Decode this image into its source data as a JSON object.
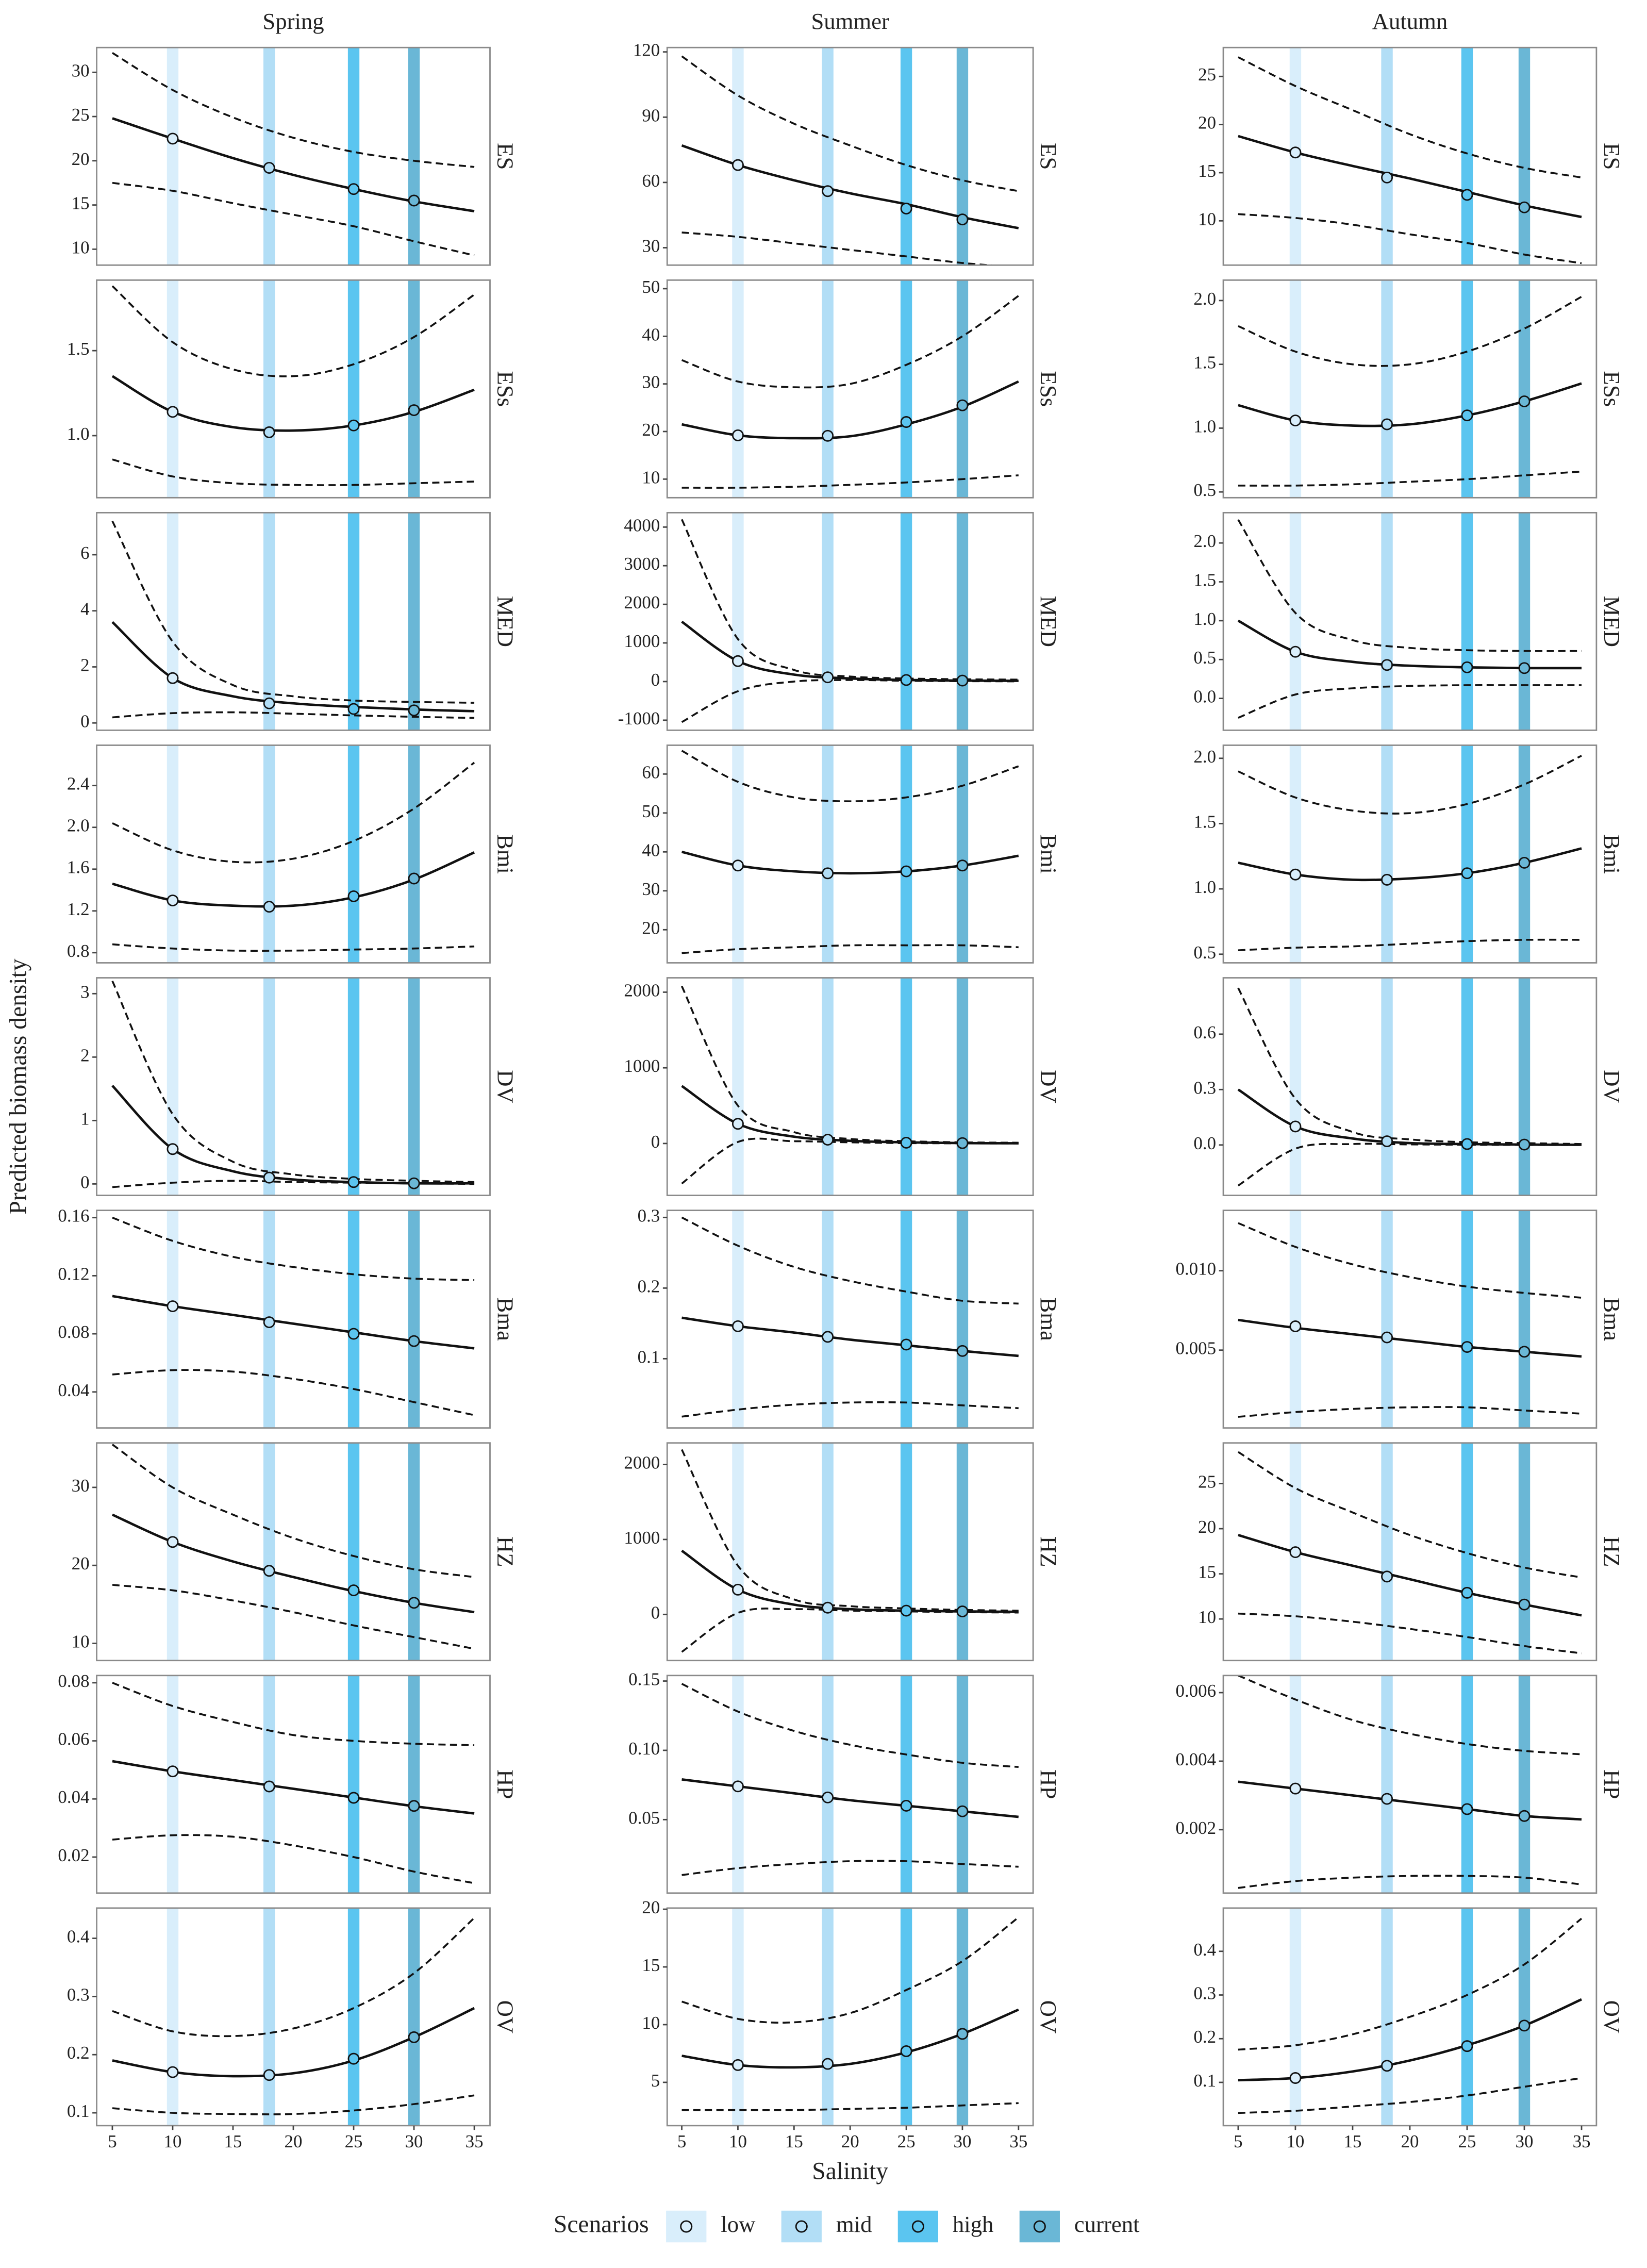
{
  "columns": [
    "Spring",
    "Summer",
    "Autumn"
  ],
  "rows": [
    "ES",
    "ESs",
    "MED",
    "Bmi",
    "DV",
    "Bma",
    "HZ",
    "HP",
    "OV"
  ],
  "xlabel": "Salinity",
  "ylabel": "Predicted biomass density",
  "x": [
    5,
    10,
    15,
    20,
    25,
    30,
    35
  ],
  "xlim": [
    3.7,
    36.3
  ],
  "xticks": [
    5,
    10,
    15,
    20,
    25,
    30,
    35
  ],
  "legend": {
    "title": "Scenarios",
    "position": "bottom"
  },
  "scenarios": [
    {
      "name": "low",
      "salinity": 10,
      "color": "#d9eefb"
    },
    {
      "name": "mid",
      "salinity": 18,
      "color": "#b2def6"
    },
    {
      "name": "high",
      "salinity": 25,
      "color": "#5bc5f0"
    },
    {
      "name": "current",
      "salinity": 30,
      "color": "#6ab7d6"
    }
  ],
  "chart_data": [
    {
      "type": "line",
      "ylim": [
        8.2,
        32.8
      ],
      "yticks": [
        10,
        15,
        20,
        25,
        30
      ],
      "fit": [
        24.8,
        22.5,
        20.3,
        18.4,
        16.8,
        15.4,
        14.3
      ],
      "upper": [
        32.2,
        28,
        24.9,
        22.6,
        21,
        20,
        19.3
      ],
      "lower": [
        17.5,
        16.6,
        15.2,
        13.9,
        12.6,
        10.9,
        9.3
      ],
      "points": [
        22.5,
        19.2,
        16.8,
        15.5
      ]
    },
    {
      "type": "line",
      "ylim": [
        22,
        122
      ],
      "yticks": [
        30,
        60,
        90,
        120
      ],
      "fit": [
        77,
        68,
        61,
        55,
        50,
        44,
        39
      ],
      "upper": [
        118,
        100,
        87,
        77,
        68,
        61,
        56
      ],
      "lower": [
        37,
        35,
        32,
        29,
        26,
        23,
        21
      ],
      "points": [
        68,
        56,
        48,
        43
      ]
    },
    {
      "type": "line",
      "ylim": [
        5.4,
        28
      ],
      "yticks": [
        10,
        15,
        20,
        25
      ],
      "fit": [
        18.8,
        17.1,
        15.7,
        14.4,
        13,
        11.6,
        10.4
      ],
      "upper": [
        27,
        24,
        21.5,
        19,
        17,
        15.5,
        14.5
      ],
      "lower": [
        10.7,
        10.3,
        9.6,
        8.6,
        7.7,
        6.5,
        5.6
      ],
      "points": [
        17.1,
        14.5,
        12.7,
        11.4
      ]
    },
    {
      "type": "line",
      "ylim": [
        0.635,
        1.915
      ],
      "yticks": [
        {
          "value": 1,
          "label": "1.0"
        },
        1.5
      ],
      "fit": [
        1.35,
        1.14,
        1.05,
        1.03,
        1.06,
        1.14,
        1.27
      ],
      "upper": [
        1.88,
        1.55,
        1.39,
        1.35,
        1.42,
        1.58,
        1.83
      ],
      "lower": [
        0.86,
        0.76,
        0.72,
        0.71,
        0.71,
        0.72,
        0.73
      ],
      "points": [
        1.14,
        1.02,
        1.06,
        1.15
      ]
    },
    {
      "type": "line",
      "ylim": [
        6.1,
        51.8
      ],
      "yticks": [
        10,
        20,
        30,
        40,
        50
      ],
      "fit": [
        21.5,
        19.2,
        18.6,
        19,
        21.5,
        25.2,
        30.5
      ],
      "upper": [
        35,
        30.5,
        29.3,
        30,
        34,
        40,
        48.5
      ],
      "lower": [
        8.2,
        8.2,
        8.4,
        8.8,
        9.3,
        10,
        10.8
      ],
      "points": [
        19.2,
        19.1,
        22,
        25.5
      ]
    },
    {
      "type": "line",
      "ylim": [
        0.455,
        2.16
      ],
      "yticks": [
        0.5,
        {
          "value": 1,
          "label": "1.0"
        },
        1.5,
        {
          "value": 2,
          "label": "2.0"
        }
      ],
      "fit": [
        1.18,
        1.06,
        1.02,
        1.03,
        1.1,
        1.21,
        1.35
      ],
      "upper": [
        1.8,
        1.6,
        1.5,
        1.5,
        1.6,
        1.78,
        2.03
      ],
      "lower": [
        0.55,
        0.55,
        0.56,
        0.58,
        0.6,
        0.63,
        0.66
      ],
      "points": [
        1.06,
        1.03,
        1.1,
        1.21
      ]
    },
    {
      "type": "line",
      "ylim": [
        -0.26,
        7.5
      ],
      "yticks": [
        0,
        2,
        4,
        6
      ],
      "fit": [
        3.6,
        1.6,
        0.95,
        0.7,
        0.57,
        0.48,
        0.42
      ],
      "upper": [
        7.2,
        2.9,
        1.35,
        0.95,
        0.8,
        0.75,
        0.72
      ],
      "lower": [
        0.2,
        0.35,
        0.38,
        0.33,
        0.27,
        0.22,
        0.18
      ],
      "points": [
        1.6,
        0.7,
        0.5,
        0.45
      ]
    },
    {
      "type": "line",
      "ylim": [
        -1261,
        4373
      ],
      "yticks": [
        -1000,
        0,
        1000,
        2000,
        3000,
        4000
      ],
      "fit": [
        1550,
        530,
        180,
        80,
        40,
        25,
        20
      ],
      "upper": [
        4200,
        1100,
        300,
        130,
        80,
        60,
        50
      ],
      "lower": [
        -1050,
        -250,
        0,
        40,
        20,
        10,
        5
      ],
      "points": [
        530,
        110,
        40,
        25
      ]
    },
    {
      "type": "line",
      "ylim": [
        -0.41,
        2.39
      ],
      "yticks": [
        {
          "value": 0,
          "label": "0.0"
        },
        0.5,
        {
          "value": 1,
          "label": "1.0"
        },
        1.5,
        {
          "value": 2,
          "label": "2.0"
        }
      ],
      "fit": [
        1,
        0.6,
        0.47,
        0.42,
        0.4,
        0.39,
        0.39
      ],
      "upper": [
        2.3,
        1.1,
        0.75,
        0.65,
        0.62,
        0.61,
        0.61
      ],
      "lower": [
        -0.25,
        0.05,
        0.13,
        0.16,
        0.17,
        0.17,
        0.17
      ],
      "points": [
        0.6,
        0.43,
        0.4,
        0.39
      ]
    },
    {
      "type": "line",
      "ylim": [
        0.703,
        2.786
      ],
      "yticks": [
        0.8,
        1.2,
        1.6,
        {
          "value": 2,
          "label": "2.0"
        },
        2.4
      ],
      "fit": [
        1.46,
        1.3,
        1.25,
        1.25,
        1.33,
        1.5,
        1.76
      ],
      "upper": [
        2.04,
        1.78,
        1.67,
        1.7,
        1.87,
        2.18,
        2.62
      ],
      "lower": [
        0.88,
        0.84,
        0.82,
        0.82,
        0.83,
        0.84,
        0.86
      ],
      "points": [
        1.3,
        1.24,
        1.34,
        1.51
      ]
    },
    {
      "type": "line",
      "ylim": [
        11.5,
        67.4
      ],
      "yticks": [
        20,
        30,
        40,
        50,
        60
      ],
      "fit": [
        40,
        36.5,
        35,
        34.5,
        35,
        36.5,
        39
      ],
      "upper": [
        66,
        58,
        54,
        53,
        54,
        57,
        62
      ],
      "lower": [
        14,
        15,
        15.5,
        16,
        16,
        16,
        15.5
      ],
      "points": [
        36.5,
        34.5,
        35,
        36.5
      ]
    },
    {
      "type": "line",
      "ylim": [
        0.434,
        2.1
      ],
      "yticks": [
        0.5,
        {
          "value": 1,
          "label": "1.0"
        },
        1.5,
        {
          "value": 2,
          "label": "2.0"
        }
      ],
      "fit": [
        1.2,
        1.11,
        1.07,
        1.08,
        1.12,
        1.2,
        1.31
      ],
      "upper": [
        1.9,
        1.7,
        1.6,
        1.58,
        1.65,
        1.8,
        2.02
      ],
      "lower": [
        0.53,
        0.55,
        0.56,
        0.58,
        0.6,
        0.61,
        0.61
      ],
      "points": [
        1.11,
        1.07,
        1.12,
        1.2
      ]
    },
    {
      "type": "line",
      "ylim": [
        -0.18,
        3.25
      ],
      "yticks": [
        0,
        1,
        2,
        3
      ],
      "fit": [
        1.55,
        0.55,
        0.2,
        0.07,
        0.03,
        0.01,
        0.01
      ],
      "upper": [
        3.2,
        1.1,
        0.35,
        0.15,
        0.08,
        0.05,
        0.03
      ],
      "lower": [
        -0.05,
        0.02,
        0.05,
        0.03,
        0.02,
        0.01,
        0
      ],
      "points": [
        0.55,
        0.1,
        0.03,
        0.01
      ]
    },
    {
      "type": "line",
      "ylim": [
        -686,
        2190
      ],
      "yticks": [
        0,
        1000,
        2000
      ],
      "fit": [
        760,
        260,
        90,
        35,
        15,
        5,
        3
      ],
      "upper": [
        2080,
        500,
        150,
        60,
        30,
        15,
        10
      ],
      "lower": [
        -530,
        20,
        30,
        15,
        5,
        2,
        0
      ],
      "points": [
        260,
        50,
        10,
        5
      ]
    },
    {
      "type": "line",
      "ylim": [
        -0.273,
        0.905
      ],
      "yticks": [
        {
          "value": 0,
          "label": "0.0"
        },
        0.3,
        0.6
      ],
      "fit": [
        0.3,
        0.1,
        0.035,
        0.01,
        0.005,
        0.002,
        0.001
      ],
      "upper": [
        0.85,
        0.25,
        0.07,
        0.03,
        0.015,
        0.01,
        0.005
      ],
      "lower": [
        -0.22,
        -0.02,
        0.005,
        0.003,
        0.001,
        0,
        0
      ],
      "points": [
        0.1,
        0.02,
        0.005,
        0.002
      ]
    },
    {
      "type": "line",
      "ylim": [
        0.0152,
        0.165
      ],
      "yticks": [
        0.04,
        0.08,
        0.12,
        0.16
      ],
      "fit": [
        0.106,
        0.099,
        0.093,
        0.087,
        0.081,
        0.075,
        0.07
      ],
      "upper": [
        0.16,
        0.144,
        0.133,
        0.126,
        0.121,
        0.118,
        0.117
      ],
      "lower": [
        0.052,
        0.055,
        0.054,
        0.049,
        0.042,
        0.033,
        0.024
      ],
      "points": [
        0.099,
        0.088,
        0.08,
        0.075
      ]
    },
    {
      "type": "line",
      "ylim": [
        0.002,
        0.31
      ],
      "yticks": [
        0.1,
        0.2,
        0.3
      ],
      "fit": [
        0.158,
        0.146,
        0.137,
        0.127,
        0.119,
        0.111,
        0.104
      ],
      "upper": [
        0.3,
        0.26,
        0.23,
        0.21,
        0.195,
        0.182,
        0.178
      ],
      "lower": [
        0.018,
        0.028,
        0.035,
        0.038,
        0.038,
        0.034,
        0.03
      ],
      "points": [
        0.146,
        0.131,
        0.12,
        0.111
      ]
    },
    {
      "type": "line",
      "ylim": [
        0.0001,
        0.0138
      ],
      "yticks": [
        0.005,
        {
          "value": 0.01,
          "label": "0.010"
        }
      ],
      "fit": [
        0.0069,
        0.0064,
        0.006,
        0.0056,
        0.0052,
        0.0049,
        0.0046
      ],
      "upper": [
        0.013,
        0.0115,
        0.0104,
        0.0096,
        0.009,
        0.0086,
        0.0083
      ],
      "lower": [
        0.0008,
        0.0011,
        0.0013,
        0.0014,
        0.0014,
        0.0012,
        0.001
      ],
      "points": [
        0.0065,
        0.0058,
        0.0052,
        0.0049
      ]
    },
    {
      "type": "line",
      "ylim": [
        7.8,
        35.7
      ],
      "yticks": [
        10,
        20,
        30
      ],
      "fit": [
        26.5,
        23,
        20.5,
        18.5,
        16.7,
        15.2,
        14
      ],
      "upper": [
        35.5,
        30,
        26.5,
        23.5,
        21.2,
        19.5,
        18.5
      ],
      "lower": [
        17.5,
        16.8,
        15.5,
        14,
        12.3,
        10.8,
        9.3
      ],
      "points": [
        23,
        19.3,
        16.8,
        15.2
      ]
    },
    {
      "type": "line",
      "ylim": [
        -615,
        2288
      ],
      "yticks": [
        0,
        1000,
        2000
      ],
      "fit": [
        850,
        330,
        130,
        70,
        50,
        40,
        35
      ],
      "upper": [
        2200,
        650,
        200,
        110,
        80,
        60,
        50
      ],
      "lower": [
        -500,
        20,
        70,
        50,
        40,
        30,
        25
      ],
      "points": [
        330,
        90,
        50,
        40
      ]
    },
    {
      "type": "line",
      "ylim": [
        5.4,
        29.5
      ],
      "yticks": [
        10,
        15,
        20,
        25
      ],
      "fit": [
        19.3,
        17.4,
        15.9,
        14.4,
        12.9,
        11.6,
        10.4
      ],
      "upper": [
        28.5,
        24.5,
        21.8,
        19.3,
        17.3,
        15.7,
        14.6
      ],
      "lower": [
        10.6,
        10.3,
        9.7,
        8.9,
        8,
        7,
        6.2
      ],
      "points": [
        17.4,
        14.7,
        12.9,
        11.6
      ]
    },
    {
      "type": "line",
      "ylim": [
        0.0076,
        0.0825
      ],
      "yticks": [
        0.02,
        0.04,
        0.06,
        0.08
      ],
      "fit": [
        0.053,
        0.0495,
        0.0465,
        0.0435,
        0.0405,
        0.0375,
        0.035
      ],
      "upper": [
        0.08,
        0.072,
        0.0665,
        0.062,
        0.06,
        0.059,
        0.0585
      ],
      "lower": [
        0.026,
        0.0275,
        0.027,
        0.024,
        0.02,
        0.015,
        0.011
      ],
      "points": [
        0.0495,
        0.0443,
        0.0404,
        0.0376
      ]
    },
    {
      "type": "line",
      "ylim": [
        -0.003,
        0.154
      ],
      "yticks": [
        0.05,
        {
          "value": 0.1,
          "label": "0.10"
        },
        0.15
      ],
      "fit": [
        0.079,
        0.074,
        0.069,
        0.064,
        0.06,
        0.056,
        0.052
      ],
      "upper": [
        0.148,
        0.128,
        0.114,
        0.104,
        0.097,
        0.091,
        0.088
      ],
      "lower": [
        0.01,
        0.015,
        0.018,
        0.02,
        0.02,
        0.018,
        0.016
      ],
      "points": [
        0.074,
        0.066,
        0.06,
        0.056
      ]
    },
    {
      "type": "line",
      "ylim": [
        0.00015,
        0.0065
      ],
      "yticks": [
        0.002,
        0.004,
        0.006
      ],
      "fit": [
        0.0034,
        0.0032,
        0.003,
        0.0028,
        0.0026,
        0.0024,
        0.0023
      ],
      "upper": [
        0.0065,
        0.0058,
        0.0052,
        0.0048,
        0.0045,
        0.0043,
        0.0042
      ],
      "lower": [
        0.0003,
        0.0005,
        0.0006,
        0.00065,
        0.00065,
        0.0006,
        0.0004
      ],
      "points": [
        0.0032,
        0.0029,
        0.0026,
        0.0024
      ]
    },
    {
      "type": "line",
      "ylim": [
        0.078,
        0.452
      ],
      "yticks": [
        0.1,
        0.2,
        0.3,
        0.4
      ],
      "fit": [
        0.19,
        0.17,
        0.163,
        0.168,
        0.19,
        0.23,
        0.28
      ],
      "upper": [
        0.275,
        0.24,
        0.232,
        0.245,
        0.28,
        0.34,
        0.435
      ],
      "lower": [
        0.108,
        0.1,
        0.098,
        0.098,
        0.104,
        0.115,
        0.13
      ],
      "points": [
        0.17,
        0.165,
        0.193,
        0.23
      ]
    },
    {
      "type": "line",
      "ylim": [
        1.25,
        20.1
      ],
      "yticks": [
        5,
        10,
        15,
        20
      ],
      "fit": [
        7.3,
        6.5,
        6.3,
        6.6,
        7.6,
        9.2,
        11.3
      ],
      "upper": [
        12,
        10.5,
        10.2,
        11,
        13,
        15.5,
        19.3
      ],
      "lower": [
        2.6,
        2.6,
        2.6,
        2.7,
        2.8,
        3,
        3.2
      ],
      "points": [
        6.5,
        6.6,
        7.7,
        9.2
      ]
    },
    {
      "type": "line",
      "ylim": [
        0.001,
        0.499
      ],
      "yticks": [
        0.1,
        0.2,
        0.3,
        0.4
      ],
      "fit": [
        0.105,
        0.11,
        0.125,
        0.15,
        0.185,
        0.23,
        0.29
      ],
      "upper": [
        0.175,
        0.185,
        0.21,
        0.25,
        0.3,
        0.37,
        0.475
      ],
      "lower": [
        0.03,
        0.035,
        0.045,
        0.055,
        0.07,
        0.09,
        0.11
      ],
      "points": [
        0.11,
        0.138,
        0.183,
        0.23
      ]
    }
  ]
}
